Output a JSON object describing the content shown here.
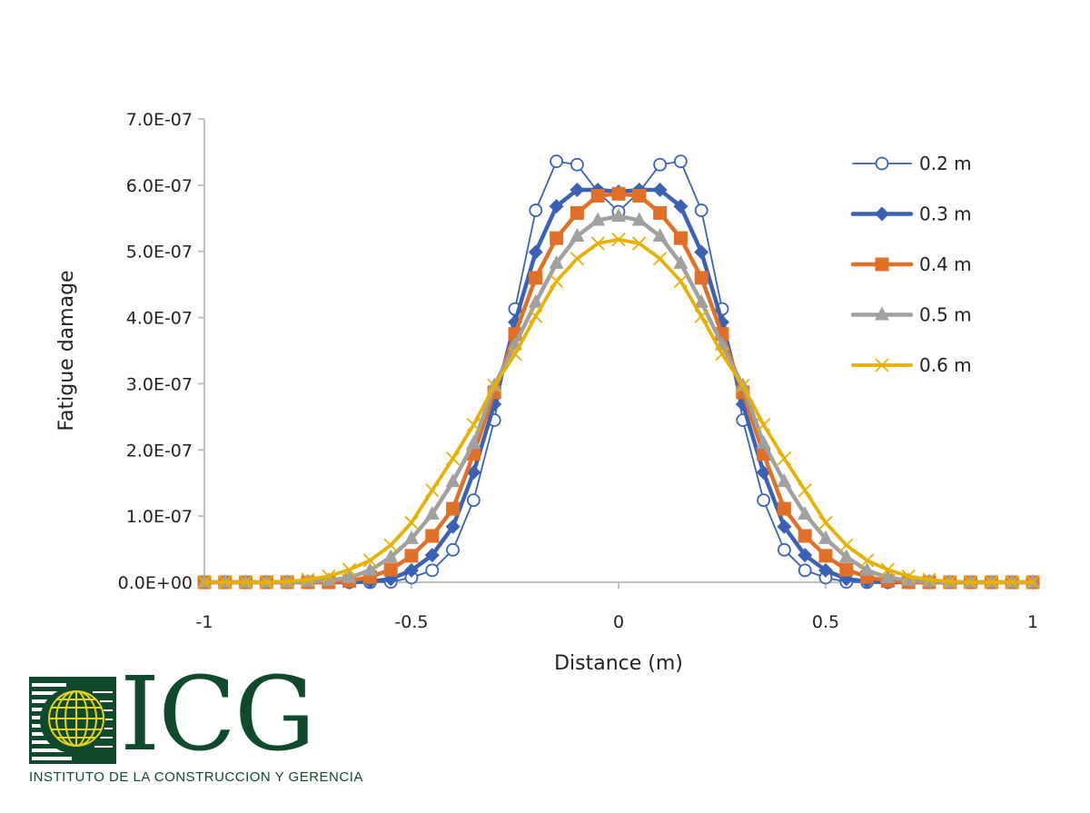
{
  "chart_data": {
    "type": "line",
    "title": "",
    "xlabel": "Distance (m)",
    "ylabel": "Fatigue damage",
    "xlim": [
      -1,
      1
    ],
    "ylim": [
      0,
      7e-07
    ],
    "x_ticks": [
      "-1",
      "-0.5",
      "0",
      "0.5",
      "1"
    ],
    "x_tick_values": [
      -1,
      -0.5,
      0,
      0.5,
      1
    ],
    "y_ticks": [
      "0.0E+00",
      "1.0E-07",
      "2.0E-07",
      "3.0E-07",
      "4.0E-07",
      "5.0E-07",
      "6.0E-07",
      "7.0E-07"
    ],
    "y_tick_values": [
      0,
      1e-07,
      2e-07,
      3e-07,
      4e-07,
      5e-07,
      6e-07,
      7e-07
    ],
    "grid": false,
    "legend_position": "right",
    "x": [
      -1,
      -0.95,
      -0.9,
      -0.85,
      -0.8,
      -0.75,
      -0.7,
      -0.65,
      -0.6,
      -0.55,
      -0.5,
      -0.45,
      -0.4,
      -0.35,
      -0.3,
      -0.25,
      -0.2,
      -0.15,
      -0.1,
      -0.05,
      0,
      0.05,
      0.1,
      0.15,
      0.2,
      0.25,
      0.3,
      0.35,
      0.4,
      0.45,
      0.5,
      0.55,
      0.6,
      0.65,
      0.7,
      0.75,
      0.8,
      0.85,
      0.9,
      0.95,
      1
    ],
    "series": [
      {
        "name": "0.2 m",
        "color": "#3a62b4",
        "marker": "circle-open",
        "values": [
          0,
          0,
          0,
          0,
          0,
          0,
          0,
          0,
          0,
          5e-10,
          7e-09,
          1.8e-08,
          4.9e-08,
          1.24e-07,
          2.45e-07,
          4.13e-07,
          5.62e-07,
          6.36e-07,
          6.31e-07,
          5.9e-07,
          5.6e-07,
          5.9e-07,
          6.31e-07,
          6.36e-07,
          5.62e-07,
          4.13e-07,
          2.45e-07,
          1.24e-07,
          4.9e-08,
          1.8e-08,
          7e-09,
          5e-10,
          0,
          0,
          0,
          0,
          0,
          0,
          0,
          0,
          0
        ]
      },
      {
        "name": "0.3 m",
        "color": "#3a62b4",
        "marker": "diamond",
        "values": [
          0,
          0,
          0,
          0,
          0,
          0,
          0,
          0,
          1e-09,
          5e-09,
          1.8e-08,
          4.1e-08,
          8.4e-08,
          1.66e-07,
          2.69e-07,
          3.93e-07,
          4.99e-07,
          5.68e-07,
          5.93e-07,
          5.93e-07,
          5.9e-07,
          5.93e-07,
          5.93e-07,
          5.68e-07,
          4.99e-07,
          3.93e-07,
          2.69e-07,
          1.66e-07,
          8.4e-08,
          4.1e-08,
          1.8e-08,
          5e-09,
          1e-09,
          0,
          0,
          0,
          0,
          0,
          0,
          0,
          0
        ]
      },
      {
        "name": "0.4 m",
        "color": "#e07028",
        "marker": "square",
        "values": [
          0,
          0,
          0,
          0,
          0,
          0,
          0,
          2e-09,
          8e-09,
          1.9e-08,
          4e-08,
          7e-08,
          1.11e-07,
          1.94e-07,
          2.87e-07,
          3.75e-07,
          4.6e-07,
          5.2e-07,
          5.58e-07,
          5.84e-07,
          5.87e-07,
          5.84e-07,
          5.58e-07,
          5.2e-07,
          4.6e-07,
          3.75e-07,
          2.87e-07,
          1.94e-07,
          1.11e-07,
          7e-08,
          4e-08,
          1.9e-08,
          8e-09,
          2e-09,
          0,
          0,
          0,
          0,
          0,
          0,
          0
        ]
      },
      {
        "name": "0.5 m",
        "color": "#a0a0a0",
        "marker": "triangle",
        "values": [
          0,
          0,
          0,
          0,
          0,
          1e-09,
          3e-09,
          7e-09,
          1.8e-08,
          3.8e-08,
          6.6e-08,
          1.03e-07,
          1.52e-07,
          2.1e-07,
          2.97e-07,
          3.59e-07,
          4.23e-07,
          4.82e-07,
          5.23e-07,
          5.47e-07,
          5.53e-07,
          5.47e-07,
          5.23e-07,
          4.82e-07,
          4.23e-07,
          3.59e-07,
          2.97e-07,
          2.1e-07,
          1.52e-07,
          1.03e-07,
          6.6e-08,
          3.8e-08,
          1.8e-08,
          7e-09,
          3e-09,
          1e-09,
          0,
          0,
          0,
          0,
          0
        ]
      },
      {
        "name": "0.6 m",
        "color": "#e8b000",
        "marker": "x",
        "values": [
          0,
          0,
          0,
          0,
          1e-09,
          4e-09,
          9e-09,
          1.9e-08,
          3.3e-08,
          5.6e-08,
          9e-08,
          1.39e-07,
          1.87e-07,
          2.38e-07,
          2.97e-07,
          3.45e-07,
          4.02e-07,
          4.55e-07,
          4.89e-07,
          5.12e-07,
          5.18e-07,
          5.12e-07,
          4.89e-07,
          4.55e-07,
          4.02e-07,
          3.45e-07,
          2.97e-07,
          2.38e-07,
          1.87e-07,
          1.39e-07,
          9e-08,
          5.6e-08,
          3.3e-08,
          1.9e-08,
          9e-09,
          4e-09,
          1e-09,
          0,
          0,
          0,
          0
        ]
      }
    ]
  },
  "logo": {
    "letters": "ICG",
    "subtitle": "INSTITUTO DE LA CONSTRUCCION Y GERENCIA",
    "colors": {
      "green": "#0f4a2c",
      "gold": "#e6d21e"
    }
  }
}
